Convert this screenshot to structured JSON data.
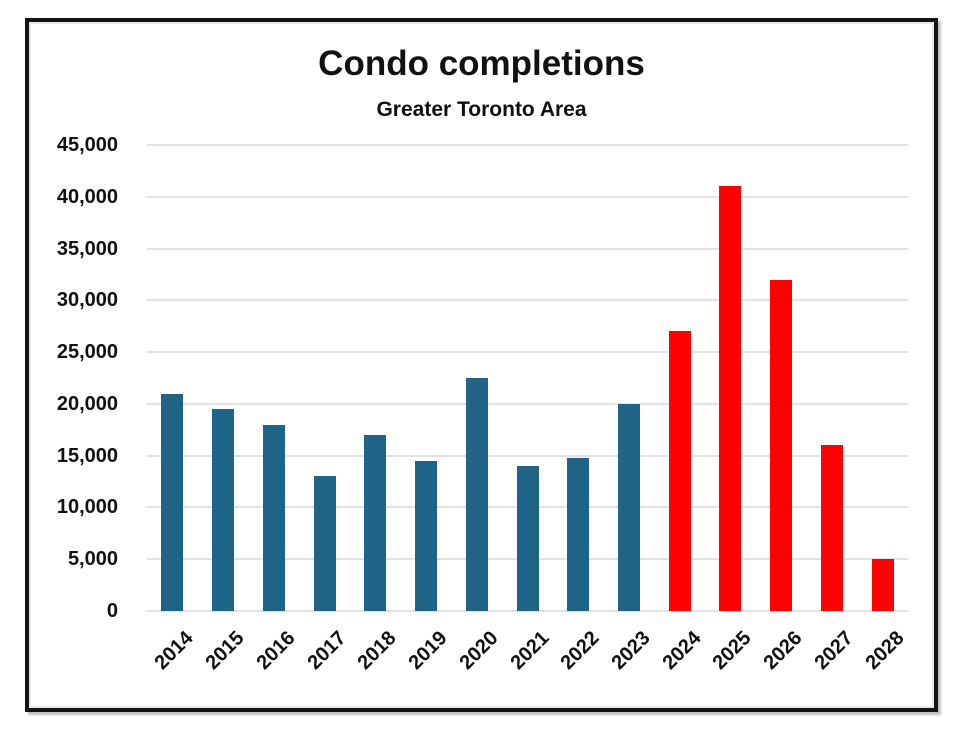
{
  "chart_data": {
    "type": "bar",
    "title": "Condo completions",
    "subtitle": "Greater Toronto Area",
    "categories": [
      "2014",
      "2015",
      "2016",
      "2017",
      "2018",
      "2019",
      "2020",
      "2021",
      "2022",
      "2023",
      "2024",
      "2025",
      "2026",
      "2027",
      "2028"
    ],
    "series": [
      {
        "name": "Condo completions",
        "values": [
          21000,
          19500,
          18000,
          13000,
          17000,
          14500,
          22500,
          14000,
          14800,
          20000,
          27000,
          41000,
          32000,
          16000,
          5000
        ]
      }
    ],
    "bar_groups": [
      "actual",
      "actual",
      "actual",
      "actual",
      "actual",
      "actual",
      "actual",
      "actual",
      "actual",
      "actual",
      "forecast",
      "forecast",
      "forecast",
      "forecast",
      "forecast"
    ],
    "group_colors": {
      "actual": "#1F6386",
      "forecast": "#FF0000"
    },
    "xlabel": "",
    "ylabel": "",
    "ylim": [
      0,
      45000
    ],
    "ytick_step": 5000,
    "y_tick_labels": [
      "0",
      "5,000",
      "10,000",
      "15,000",
      "20,000",
      "25,000",
      "30,000",
      "35,000",
      "40,000",
      "45,000"
    ],
    "grid": true,
    "grid_color": "#E2E2E2",
    "text_color": "#111111",
    "frame_color": "#141414",
    "legend_position": "none"
  }
}
